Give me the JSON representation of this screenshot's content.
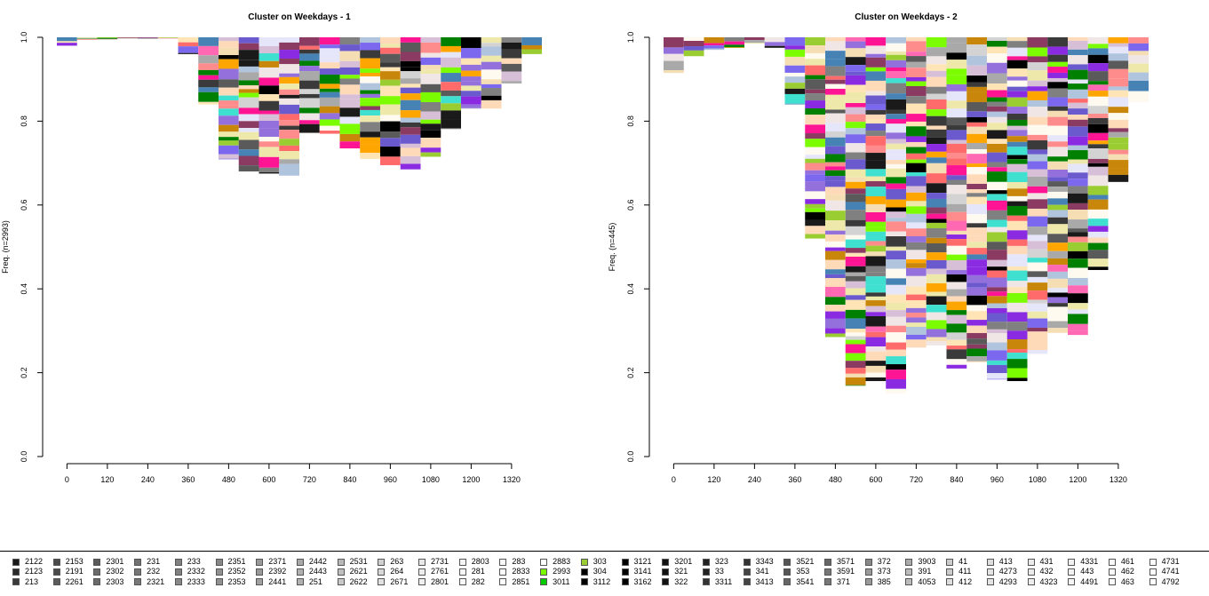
{
  "chart_data": [
    {
      "type": "area",
      "title": "Cluster on Weekdays -  1",
      "ylabel": "Freq. (n=2993)",
      "xlabel": "",
      "xlim": [
        0,
        1440
      ],
      "ylim": [
        0,
        1
      ],
      "x_ticks": [
        "0",
        "120",
        "240",
        "360",
        "480",
        "600",
        "720",
        "840",
        "960",
        "1080",
        "1200",
        "1320"
      ],
      "y_ticks": [
        "0.0",
        "0.2",
        "0.4",
        "0.6",
        "0.8",
        "1.0"
      ],
      "grid": false,
      "x": [
        0,
        60,
        120,
        180,
        240,
        300,
        360,
        420,
        480,
        540,
        600,
        660,
        720,
        780,
        840,
        900,
        960,
        1020,
        1080,
        1140,
        1200,
        1260,
        1320,
        1380
      ],
      "lower_envelope": [
        0.98,
        0.995,
        0.995,
        0.998,
        0.998,
        0.998,
        0.96,
        0.84,
        0.71,
        0.68,
        0.675,
        0.67,
        0.77,
        0.77,
        0.735,
        0.71,
        0.695,
        0.685,
        0.715,
        0.78,
        0.83,
        0.83,
        0.89,
        0.96
      ]
    },
    {
      "type": "area",
      "title": "Cluster on Weekdays -  2",
      "ylabel": "Freq. (n=445)",
      "xlabel": "",
      "xlim": [
        0,
        1440
      ],
      "ylim": [
        0,
        1
      ],
      "x_ticks": [
        "0",
        "120",
        "240",
        "360",
        "480",
        "600",
        "720",
        "840",
        "960",
        "1080",
        "1200",
        "1320"
      ],
      "y_ticks": [
        "0.0",
        "0.2",
        "0.4",
        "0.6",
        "0.8",
        "1.0"
      ],
      "grid": false,
      "x": [
        0,
        60,
        120,
        180,
        240,
        300,
        360,
        420,
        480,
        540,
        600,
        660,
        720,
        780,
        840,
        900,
        960,
        1020,
        1080,
        1140,
        1200,
        1260,
        1320,
        1380
      ],
      "lower_envelope": [
        0.915,
        0.955,
        0.97,
        0.975,
        0.985,
        0.975,
        0.84,
        0.52,
        0.285,
        0.17,
        0.18,
        0.15,
        0.26,
        0.265,
        0.21,
        0.225,
        0.185,
        0.18,
        0.245,
        0.295,
        0.29,
        0.445,
        0.655,
        0.845
      ]
    }
  ],
  "palette": [
    "#c8860a",
    "#6a5acd",
    "#7b68ee",
    "#9370db",
    "#8a2be2",
    "#ff6a6a",
    "#ffa500",
    "#9acd32",
    "#7cfc00",
    "#008000",
    "#ff1493",
    "#8b3a62",
    "#ffe4b5",
    "#f5deb3",
    "#eee8aa",
    "#fffaf0",
    "#f0e6e6",
    "#d3d3d3",
    "#a9a9a9",
    "#808080",
    "#5a5a5a",
    "#3a3a3a",
    "#1a1a1a",
    "#000000",
    "#40e0d0",
    "#ff69b4",
    "#ffdab9",
    "#e6e6fa",
    "#b0c4de",
    "#4682b4",
    "#d8bfd8",
    "#ff8c8c"
  ],
  "legend": {
    "items": [
      {
        "label": "2122",
        "color": "#1a1a1a"
      },
      {
        "label": "2123",
        "color": "#2a2a2a"
      },
      {
        "label": "213",
        "color": "#3a3a3a"
      },
      {
        "label": "2153",
        "color": "#4a4a4a"
      },
      {
        "label": "2191",
        "color": "#4a4a4a"
      },
      {
        "label": "2261",
        "color": "#5a5a5a"
      },
      {
        "label": "2301",
        "color": "#5a5a5a"
      },
      {
        "label": "2302",
        "color": "#6a6a6a"
      },
      {
        "label": "2303",
        "color": "#6a6a6a"
      },
      {
        "label": "231",
        "color": "#707070"
      },
      {
        "label": "232",
        "color": "#777777"
      },
      {
        "label": "2321",
        "color": "#777777"
      },
      {
        "label": "233",
        "color": "#808080"
      },
      {
        "label": "2332",
        "color": "#808080"
      },
      {
        "label": "2333",
        "color": "#888888"
      },
      {
        "label": "2351",
        "color": "#888888"
      },
      {
        "label": "2352",
        "color": "#909090"
      },
      {
        "label": "2353",
        "color": "#909090"
      },
      {
        "label": "2371",
        "color": "#999999"
      },
      {
        "label": "2392",
        "color": "#999999"
      },
      {
        "label": "2441",
        "color": "#a0a0a0"
      },
      {
        "label": "2442",
        "color": "#a8a8a8"
      },
      {
        "label": "2443",
        "color": "#b0b0b0"
      },
      {
        "label": "251",
        "color": "#b0b0b0"
      },
      {
        "label": "2531",
        "color": "#b8b8b8"
      },
      {
        "label": "2621",
        "color": "#c0c0c0"
      },
      {
        "label": "2622",
        "color": "#c8c8c8"
      },
      {
        "label": "263",
        "color": "#d0d0d0"
      },
      {
        "label": "264",
        "color": "#d8d8d8"
      },
      {
        "label": "2671",
        "color": "#e0e0e0"
      },
      {
        "label": "2731",
        "color": "#e8e8e8"
      },
      {
        "label": "2761",
        "color": "#eeeeee"
      },
      {
        "label": "2801",
        "color": "#f0f0f0"
      },
      {
        "label": "2803",
        "color": "#f4f4f4"
      },
      {
        "label": "281",
        "color": "#f6f6f6"
      },
      {
        "label": "282",
        "color": "#f8f8f8"
      },
      {
        "label": "283",
        "color": "#fafafa"
      },
      {
        "label": "2833",
        "color": "#fcfcfc"
      },
      {
        "label": "2851",
        "color": "#fefefe"
      },
      {
        "label": "2883",
        "color": "#ffffff"
      },
      {
        "label": "2993",
        "color": "#7cfc00"
      },
      {
        "label": "3011",
        "color": "#00cc00"
      },
      {
        "label": "303",
        "color": "#9acd32"
      },
      {
        "label": "304",
        "color": "#000000"
      },
      {
        "label": "3112",
        "color": "#000000"
      },
      {
        "label": "3121",
        "color": "#000000"
      },
      {
        "label": "3141",
        "color": "#000000"
      },
      {
        "label": "3162",
        "color": "#000000"
      },
      {
        "label": "3201",
        "color": "#111111"
      },
      {
        "label": "321",
        "color": "#111111"
      },
      {
        "label": "322",
        "color": "#111111"
      },
      {
        "label": "323",
        "color": "#222222"
      },
      {
        "label": "33",
        "color": "#222222"
      },
      {
        "label": "3311",
        "color": "#333333"
      },
      {
        "label": "3343",
        "color": "#333333"
      },
      {
        "label": "341",
        "color": "#444444"
      },
      {
        "label": "3413",
        "color": "#444444"
      },
      {
        "label": "3521",
        "color": "#555555"
      },
      {
        "label": "353",
        "color": "#555555"
      },
      {
        "label": "3541",
        "color": "#666666"
      },
      {
        "label": "3571",
        "color": "#666666"
      },
      {
        "label": "3591",
        "color": "#777777"
      },
      {
        "label": "371",
        "color": "#777777"
      },
      {
        "label": "372",
        "color": "#888888"
      },
      {
        "label": "373",
        "color": "#999999"
      },
      {
        "label": "385",
        "color": "#999999"
      },
      {
        "label": "3903",
        "color": "#aaaaaa"
      },
      {
        "label": "391",
        "color": "#bbbbbb"
      },
      {
        "label": "4053",
        "color": "#bbbbbb"
      },
      {
        "label": "41",
        "color": "#cccccc"
      },
      {
        "label": "411",
        "color": "#cccccc"
      },
      {
        "label": "412",
        "color": "#dddddd"
      },
      {
        "label": "413",
        "color": "#dddddd"
      },
      {
        "label": "4273",
        "color": "#e4e4e4"
      },
      {
        "label": "4293",
        "color": "#e4e4e4"
      },
      {
        "label": "431",
        "color": "#eaeaea"
      },
      {
        "label": "432",
        "color": "#eaeaea"
      },
      {
        "label": "4323",
        "color": "#eeeeee"
      },
      {
        "label": "4331",
        "color": "#f2f2f2"
      },
      {
        "label": "443",
        "color": "#f2f2f2"
      },
      {
        "label": "4491",
        "color": "#f5f5f5"
      },
      {
        "label": "461",
        "color": "#f8f8f8"
      },
      {
        "label": "462",
        "color": "#f8f8f8"
      },
      {
        "label": "463",
        "color": "#fafafa"
      },
      {
        "label": "4731",
        "color": "#fcfcfc"
      },
      {
        "label": "4741",
        "color": "#fcfcfc"
      },
      {
        "label": "4792",
        "color": "#ffffff"
      }
    ]
  }
}
